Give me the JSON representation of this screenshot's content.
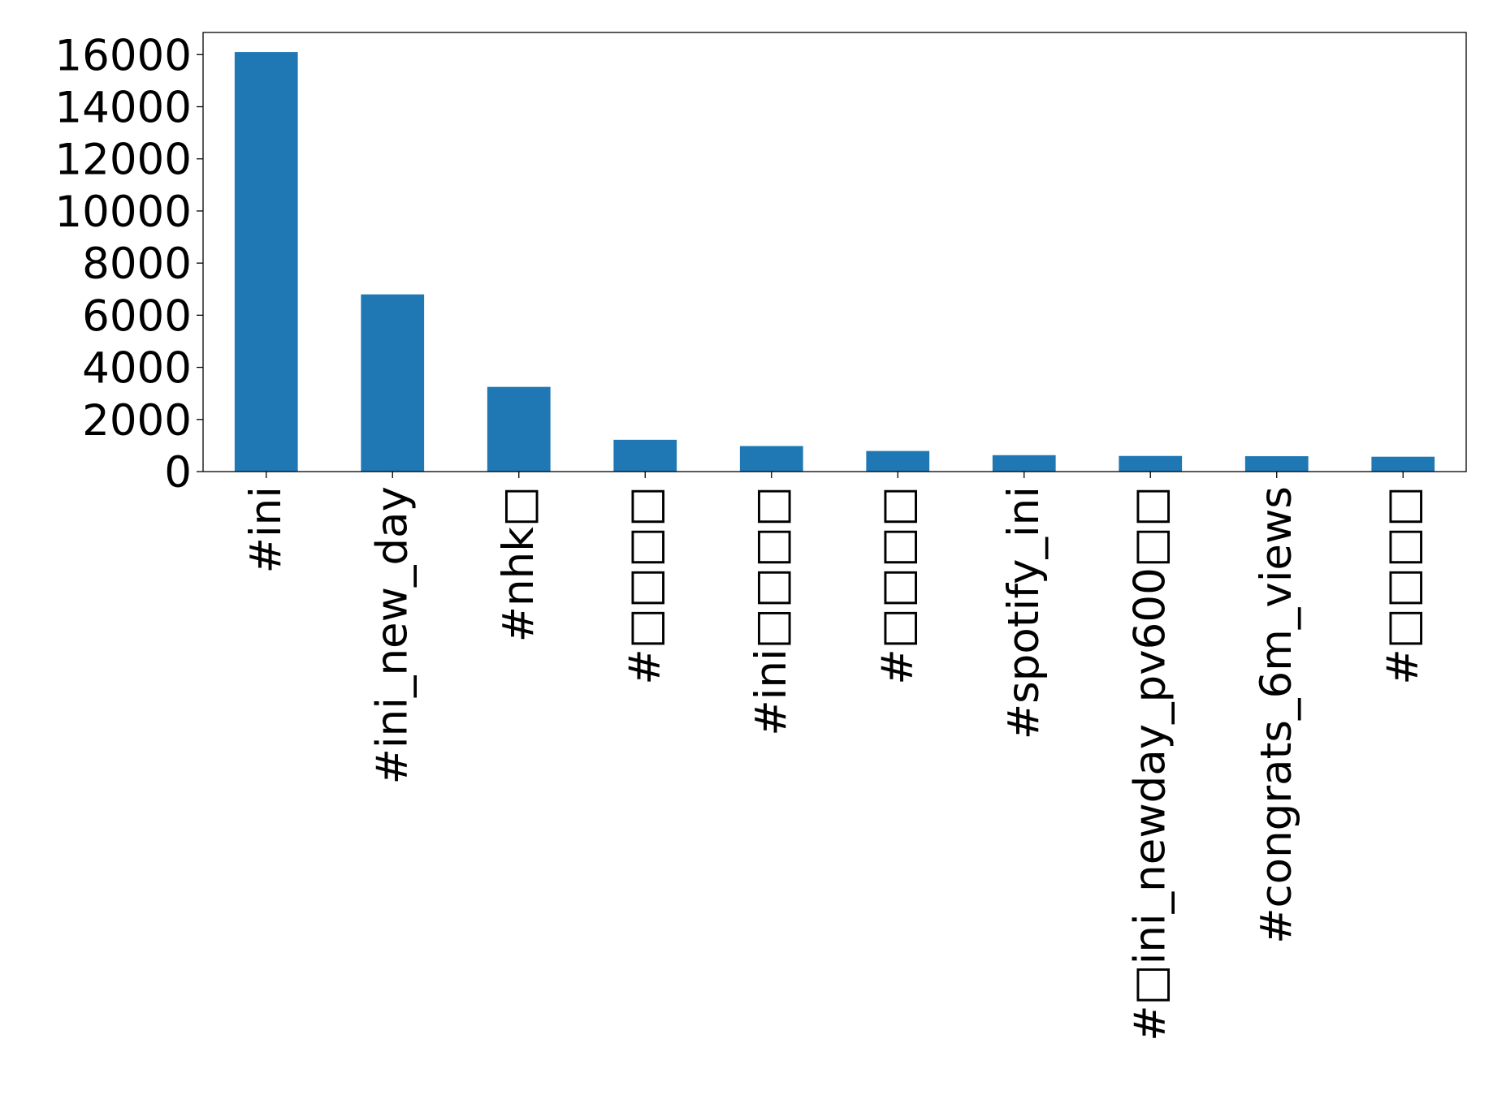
{
  "chart_data": {
    "type": "bar",
    "categories": [
      "#ini",
      "#ini_new_day",
      "#nhk□",
      "#□□□□",
      "#ini□□□□",
      "#□□□□",
      "#spotify_ini",
      "#□ini_newday_pv600□□",
      "#congrats_6m_views",
      "#□□□□"
    ],
    "values": [
      16100,
      6800,
      3250,
      1220,
      980,
      790,
      630,
      600,
      590,
      570
    ],
    "title": "",
    "xlabel": "",
    "ylabel": "",
    "ylim": [
      0,
      16850
    ],
    "yticks": [
      0,
      2000,
      4000,
      6000,
      8000,
      10000,
      12000,
      14000,
      16000
    ],
    "grid": false,
    "legend": "none",
    "bar_color": "#1f77b4"
  }
}
